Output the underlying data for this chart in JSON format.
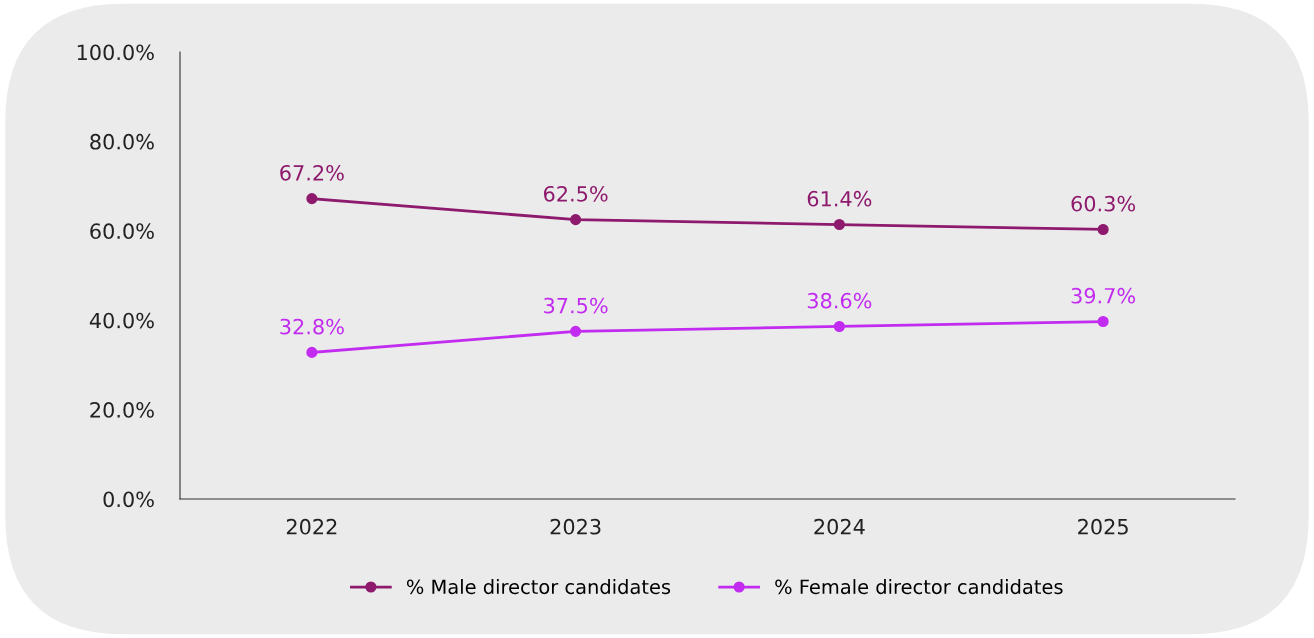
{
  "chart_data": {
    "type": "line",
    "categories": [
      "2022",
      "2023",
      "2024",
      "2025"
    ],
    "series": [
      {
        "name": "% Male director candidates",
        "color": "#8e1a6e",
        "values": [
          67.2,
          62.5,
          61.4,
          60.3
        ],
        "value_labels": [
          "67.2%",
          "62.5%",
          "61.4%",
          "60.3%"
        ]
      },
      {
        "name": "% Female director candidates",
        "color": "#c22cf0",
        "values": [
          32.8,
          37.5,
          38.6,
          39.7
        ],
        "value_labels": [
          "32.8%",
          "37.5%",
          "38.6%",
          "39.7%"
        ]
      }
    ],
    "ylim": [
      0,
      100
    ],
    "yticks": [
      {
        "value": 0,
        "label": "0.0%"
      },
      {
        "value": 20,
        "label": "20.0%"
      },
      {
        "value": 40,
        "label": "40.0%"
      },
      {
        "value": 60,
        "label": "60.0%"
      },
      {
        "value": 80,
        "label": "80.0%"
      },
      {
        "value": 100,
        "label": "100.0%"
      }
    ],
    "grid": false,
    "legend": "bottom",
    "marker": "circle",
    "line_style": "solid"
  }
}
